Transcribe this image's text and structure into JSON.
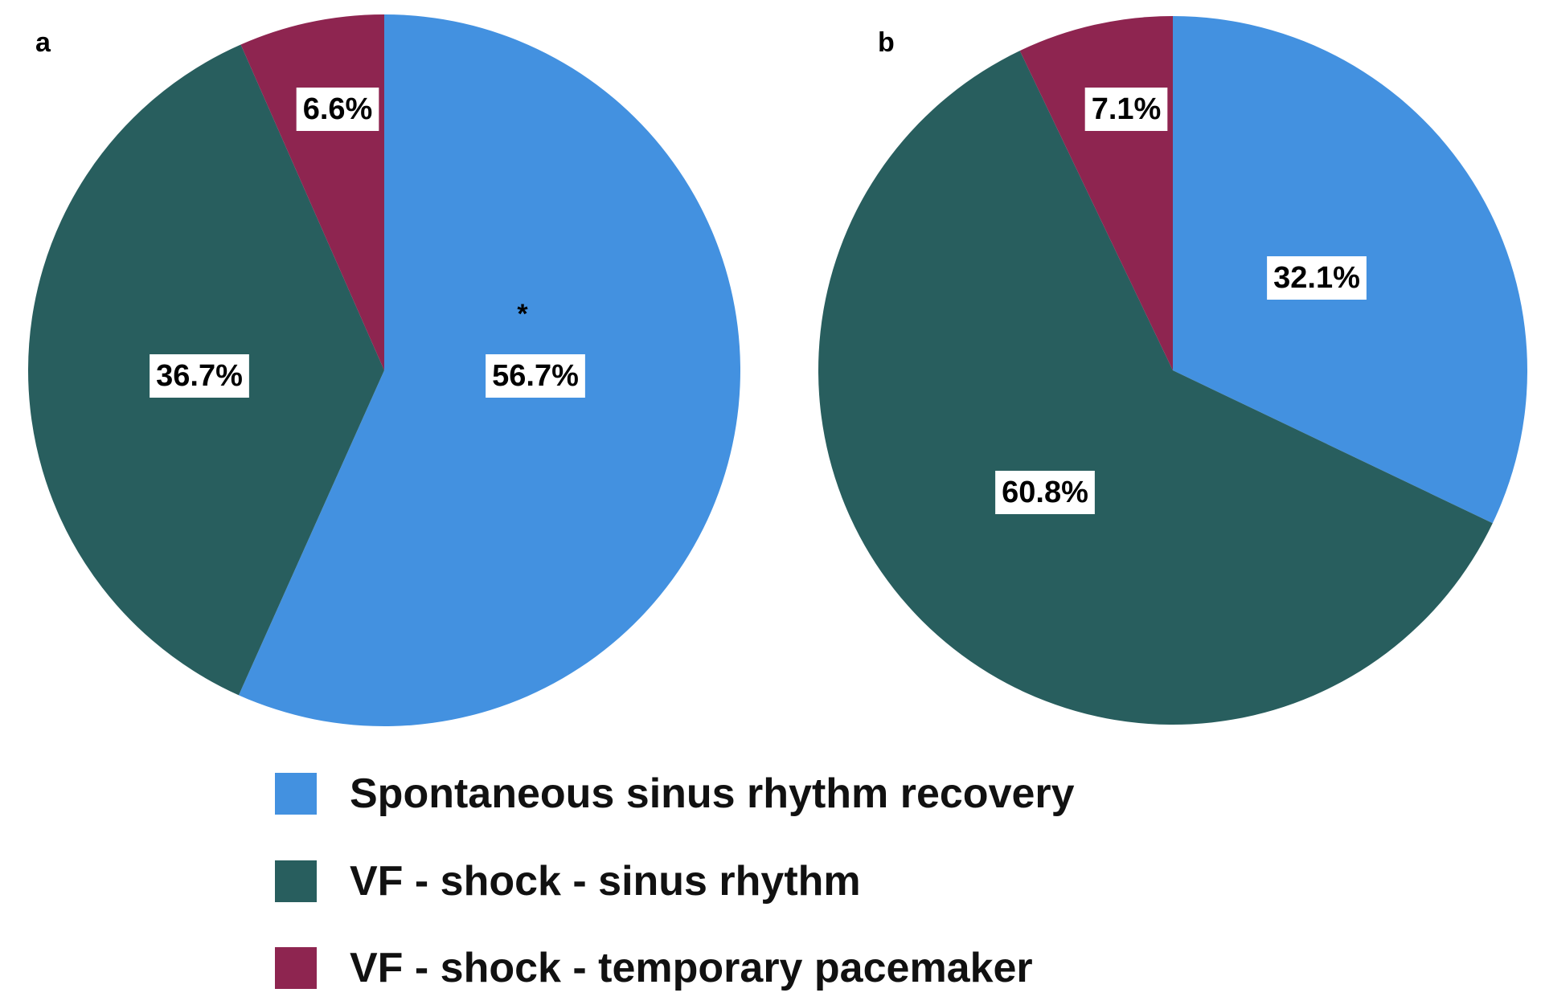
{
  "chart_data": [
    {
      "type": "pie",
      "panel": "a",
      "start_category": "Spontaneous sinus rhythm recovery",
      "direction": "clockwise",
      "slices": [
        {
          "name": "Spontaneous sinus rhythm recovery",
          "value": 56.7,
          "label": "56.7%",
          "marker": "*"
        },
        {
          "name": "VF - shock - sinus rhythm",
          "value": 36.7,
          "label": "36.7%"
        },
        {
          "name": "VF - shock - temporary pacemaker",
          "value": 6.6,
          "label": "6.6%"
        }
      ]
    },
    {
      "type": "pie",
      "panel": "b",
      "start_category": "Spontaneous sinus rhythm recovery",
      "direction": "clockwise",
      "slices": [
        {
          "name": "Spontaneous sinus rhythm recovery",
          "value": 32.1,
          "label": "32.1%"
        },
        {
          "name": "VF - shock - sinus rhythm",
          "value": 60.8,
          "label": "60.8%"
        },
        {
          "name": "VF - shock - temporary pacemaker",
          "value": 7.1,
          "label": "7.1%"
        }
      ]
    }
  ],
  "legend": {
    "placement": "bottom-center",
    "items": [
      {
        "label": "Spontaneous sinus rhythm recovery",
        "color": "#4391E0"
      },
      {
        "label": "VF - shock - sinus rhythm",
        "color": "#285E5E"
      },
      {
        "label": "VF - shock - temporary pacemaker",
        "color": "#8E2550"
      }
    ]
  }
}
